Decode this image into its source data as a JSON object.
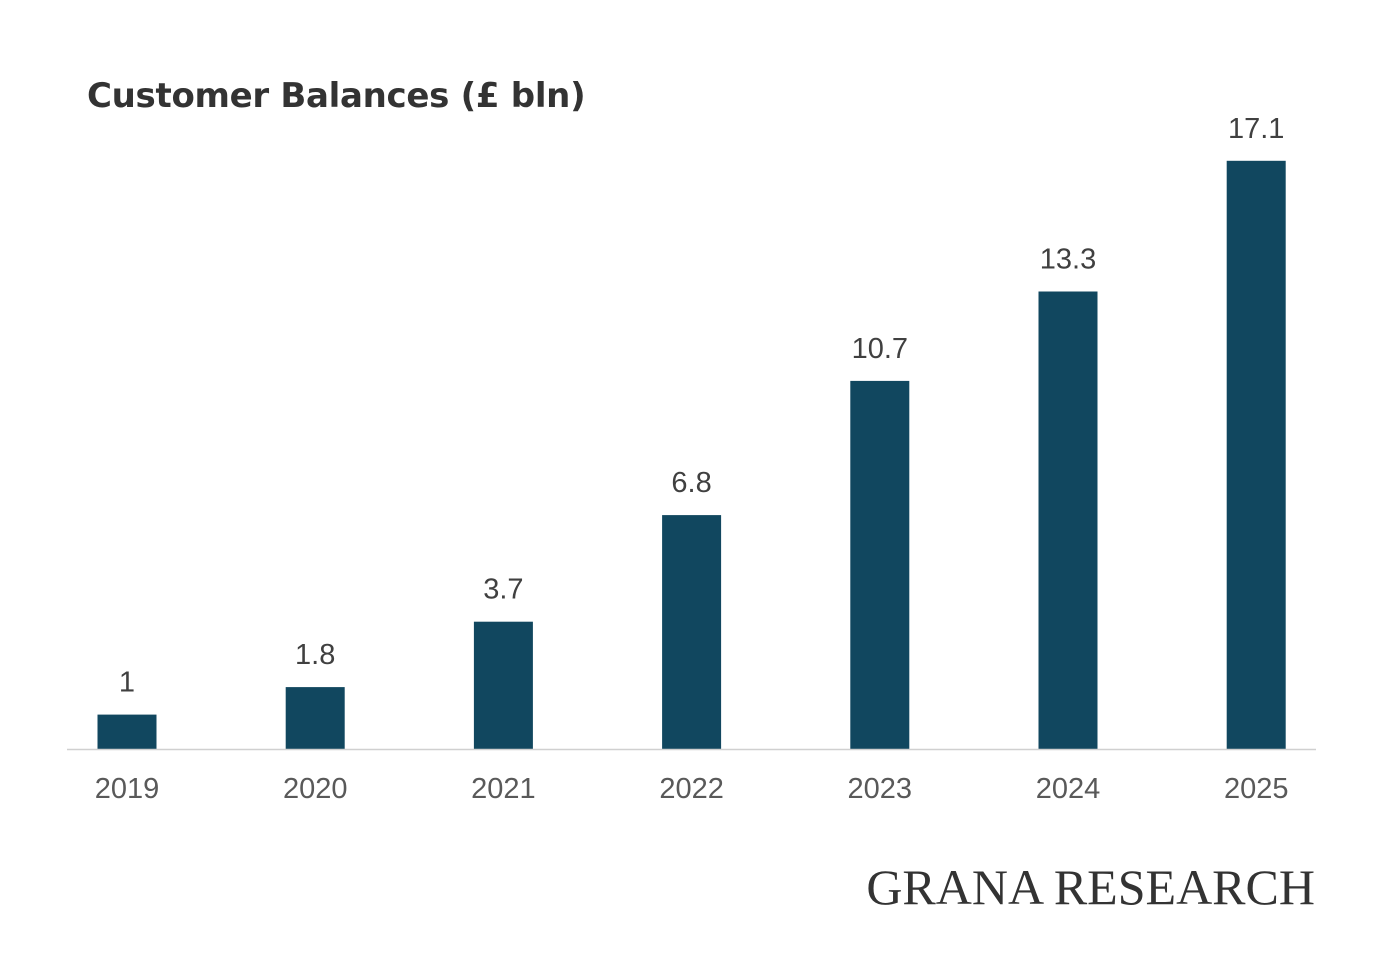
{
  "chart_data": {
    "type": "bar",
    "title": "Customer Balances (£ bln)",
    "categories": [
      "2019",
      "2020",
      "2021",
      "2022",
      "2023",
      "2024",
      "2025"
    ],
    "values": [
      1,
      1.8,
      3.7,
      6.8,
      10.7,
      13.3,
      17.1
    ],
    "data_labels": [
      "1",
      "1.8",
      "3.7",
      "6.8",
      "10.7",
      "13.3",
      "17.1"
    ],
    "xlabel": "",
    "ylabel": "",
    "ylim": [
      0,
      20
    ],
    "grid": false,
    "legend": "none",
    "colors": {
      "bar": "#11475f",
      "axis": "#d0d0d0",
      "tick_label": "#595959",
      "data_label": "#404040",
      "title": "#333333"
    }
  },
  "branding": {
    "watermark": "GRANA RESEARCH"
  }
}
